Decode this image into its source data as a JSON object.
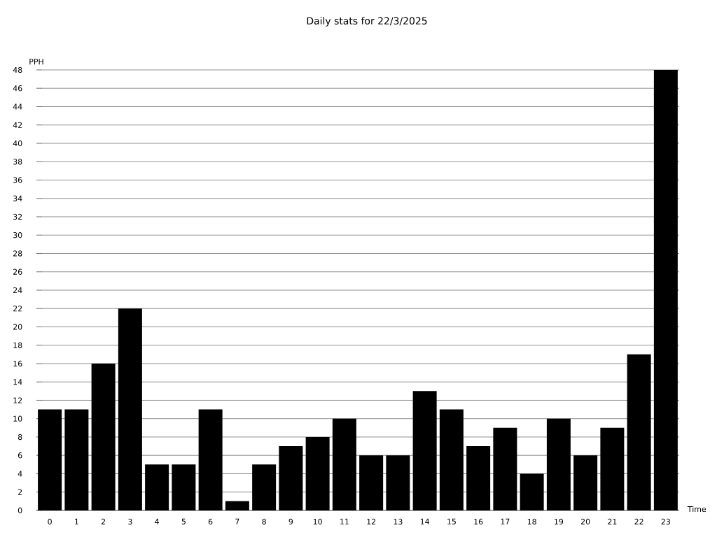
{
  "chart_data": {
    "type": "bar",
    "title": "Daily stats for 22/3/2025",
    "xlabel": "Time",
    "ylabel": "PPH",
    "categories": [
      "0",
      "1",
      "2",
      "3",
      "4",
      "5",
      "6",
      "7",
      "8",
      "9",
      "10",
      "11",
      "12",
      "13",
      "14",
      "15",
      "16",
      "17",
      "18",
      "19",
      "20",
      "21",
      "22",
      "23"
    ],
    "values": [
      11,
      11,
      16,
      22,
      5,
      5,
      11,
      1,
      5,
      7,
      8,
      10,
      6,
      6,
      13,
      11,
      7,
      9,
      4,
      10,
      6,
      9,
      17,
      48
    ],
    "color": "#000000",
    "ylim": [
      0,
      48
    ],
    "yticks": [
      0,
      2,
      4,
      6,
      8,
      10,
      12,
      14,
      16,
      18,
      20,
      22,
      24,
      26,
      28,
      30,
      32,
      34,
      36,
      38,
      40,
      42,
      44,
      46,
      48
    ],
    "grid": "y"
  }
}
